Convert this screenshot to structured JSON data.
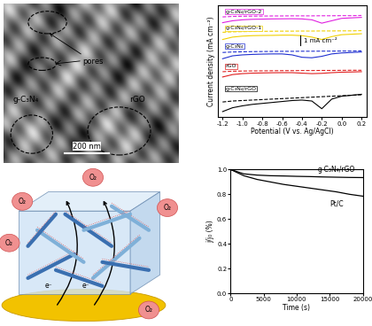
{
  "sem_image": {
    "labels": [
      "pores",
      "g-C₃N₄",
      "rGO"
    ],
    "scale_bar": "200 nm"
  },
  "schematic": {
    "gas_labels": [
      "O₂",
      "O₂",
      "O₂",
      "O₂",
      "O₂"
    ],
    "electron_labels": [
      "e⁻",
      "e⁻"
    ]
  },
  "chart_data": [
    {
      "type": "line",
      "xlabel": "Potential (V vs. Ag/AgCl)",
      "ylabel": "Current density (mA cm⁻²)",
      "x": [
        -1.2,
        -1.1,
        -1.0,
        -0.9,
        -0.8,
        -0.7,
        -0.6,
        -0.5,
        -0.4,
        -0.3,
        -0.2,
        -0.1,
        0.0,
        0.1,
        0.2
      ],
      "xlim": [
        -1.25,
        0.25
      ],
      "xticks": [
        -1.2,
        -1.0,
        -0.8,
        -0.6,
        -0.4,
        -0.2,
        0.0,
        0.2
      ],
      "ylim": [
        -5.5,
        6.2
      ],
      "tick_labels": "x",
      "scale_bar": {
        "value": 1,
        "label": "1 mA cm⁻²"
      },
      "series": [
        {
          "name": "g-C₃N₄/rGO-2",
          "color": "#e020e0",
          "line_style": "solid",
          "values": [
            4.35,
            4.55,
            4.65,
            4.7,
            4.72,
            4.74,
            4.75,
            4.76,
            4.74,
            4.65,
            4.3,
            4.55,
            4.8,
            4.85,
            4.9
          ]
        },
        {
          "color": "#e020e0",
          "line_style": "dashed",
          "values": [
            4.95,
            5.0,
            5.02,
            5.03,
            5.04,
            5.05,
            5.05,
            5.06,
            5.06,
            5.06,
            5.07,
            5.07,
            5.08,
            5.08,
            5.1
          ]
        },
        {
          "name": "g-C₃N₄/rGO-1",
          "color": "#f0d000",
          "line_style": "solid",
          "values": [
            2.6,
            2.85,
            2.95,
            3.0,
            3.02,
            3.03,
            3.05,
            3.05,
            3.0,
            2.85,
            2.6,
            2.9,
            3.1,
            3.15,
            3.2
          ]
        },
        {
          "color": "#f0d000",
          "line_style": "dashed",
          "values": [
            3.35,
            3.4,
            3.42,
            3.44,
            3.45,
            3.46,
            3.47,
            3.47,
            3.48,
            3.48,
            3.49,
            3.49,
            3.5,
            3.5,
            3.52
          ]
        },
        {
          "name": "g-C₃N₄",
          "color": "#2030d0",
          "line_style": "solid",
          "values": [
            0.6,
            0.9,
            1.0,
            1.05,
            1.08,
            1.1,
            1.1,
            1.0,
            0.75,
            0.7,
            0.85,
            1.1,
            1.2,
            1.25,
            1.3
          ]
        },
        {
          "color": "#2030d0",
          "line_style": "dashed",
          "values": [
            1.25,
            1.3,
            1.32,
            1.34,
            1.35,
            1.36,
            1.37,
            1.37,
            1.38,
            1.38,
            1.39,
            1.39,
            1.4,
            1.4,
            1.42
          ]
        },
        {
          "name": "rGO",
          "color": "#e02020",
          "line_style": "solid",
          "values": [
            -1.3,
            -1.05,
            -0.95,
            -0.9,
            -0.88,
            -0.86,
            -0.85,
            -0.85,
            -0.9,
            -0.95,
            -0.92,
            -0.85,
            -0.8,
            -0.78,
            -0.75
          ]
        },
        {
          "color": "#e02020",
          "line_style": "dashed",
          "values": [
            -0.75,
            -0.7,
            -0.68,
            -0.67,
            -0.66,
            -0.65,
            -0.64,
            -0.64,
            -0.63,
            -0.63,
            -0.62,
            -0.62,
            -0.61,
            -0.6,
            -0.6
          ]
        },
        {
          "name": "g-C₃N₄/rGO",
          "color": "#000000",
          "line_style": "solid",
          "values": [
            -4.9,
            -4.5,
            -4.3,
            -4.15,
            -4.05,
            -3.95,
            -3.85,
            -3.75,
            -3.7,
            -3.8,
            -4.6,
            -3.6,
            -3.3,
            -3.2,
            -3.1
          ]
        },
        {
          "color": "#000000",
          "line_style": "dashed",
          "values": [
            -3.9,
            -3.8,
            -3.75,
            -3.7,
            -3.65,
            -3.6,
            -3.55,
            -3.5,
            -3.45,
            -3.4,
            -3.35,
            -3.3,
            -3.25,
            -3.2,
            -3.15
          ]
        }
      ]
    },
    {
      "type": "line",
      "xlabel": "Time (s)",
      "ylabel": "j/j₀ (%)",
      "x": [
        0,
        2000,
        4000,
        6000,
        8000,
        10000,
        12000,
        14000,
        16000,
        18000,
        20000
      ],
      "xlim": [
        0,
        20000
      ],
      "xticks": [
        0,
        5000,
        10000,
        15000,
        20000
      ],
      "ylim": [
        0,
        1.0
      ],
      "yticks": [
        {
          "value": 0,
          "label": "0.0"
        },
        0.2,
        0.4,
        0.6,
        0.8,
        1.0
      ],
      "series": [
        {
          "name": "g-C₃N₄/rGO",
          "color": "#000000",
          "values": [
            1.0,
            0.965,
            0.955,
            0.95,
            0.948,
            0.945,
            0.943,
            0.94,
            0.938,
            0.936,
            0.935
          ]
        },
        {
          "name": "Pt/C",
          "color": "#000000",
          "values": [
            1.0,
            0.95,
            0.92,
            0.9,
            0.88,
            0.865,
            0.85,
            0.835,
            0.82,
            0.8,
            0.785
          ]
        }
      ]
    }
  ]
}
